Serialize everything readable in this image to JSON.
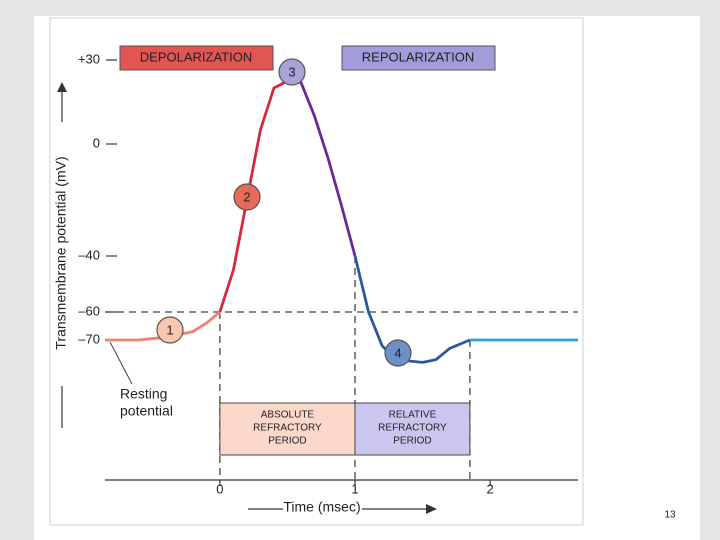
{
  "chart_data": {
    "type": "line",
    "y_label": "Transmembrane potential (mV)",
    "x_label": "Time (msec)",
    "xlim": [
      -0.85,
      2.65
    ],
    "ylim": [
      -120,
      40
    ],
    "xticks": [
      0,
      1,
      2
    ],
    "yticks": [
      {
        "value": 30,
        "label": "+30"
      },
      0,
      {
        "value": -40,
        "label": "–40"
      },
      {
        "value": -60,
        "label": "–60"
      },
      {
        "value": -70,
        "label": "–70"
      }
    ],
    "phase_labels": [
      "DEPOLARIZATION",
      "REPOLARIZATION"
    ],
    "markers": [
      "1",
      "2",
      "3",
      "4"
    ],
    "resting_label": [
      "Resting",
      "potential"
    ],
    "absolute_label": [
      "ABSOLUTE",
      "REFRACTORY",
      "PERIOD"
    ],
    "relative_label": [
      "RELATIVE",
      "REFRACTORY",
      "PERIOD"
    ],
    "series": [
      {
        "color": "#ee8270",
        "x": [
          -0.85,
          -0.6,
          -0.4,
          -0.2,
          -0.1,
          0
        ],
        "values": [
          -70,
          -70,
          -69,
          -67,
          -64,
          -60
        ]
      },
      {
        "color": "#d42a3c",
        "x": [
          0,
          0.1,
          0.2,
          0.3,
          0.4,
          0.52
        ],
        "values": [
          -60,
          -45,
          -20,
          5,
          20,
          23
        ]
      },
      {
        "color": "#6a2a96",
        "x": [
          0.52,
          0.6,
          0.7,
          0.8,
          0.9,
          1.0
        ],
        "values": [
          23,
          22,
          10,
          -5,
          -22,
          -40
        ]
      },
      {
        "color": "#2a5a9a",
        "x": [
          1.0,
          1.1,
          1.2,
          1.3,
          1.5,
          1.6,
          1.7,
          1.85
        ],
        "values": [
          -40,
          -60,
          -72,
          -77,
          -78,
          -77,
          -73,
          -70
        ]
      },
      {
        "color": "#2aa0d8",
        "x": [
          1.85,
          2.65
        ],
        "values": [
          -70,
          -70
        ]
      }
    ]
  },
  "page_number": "13"
}
